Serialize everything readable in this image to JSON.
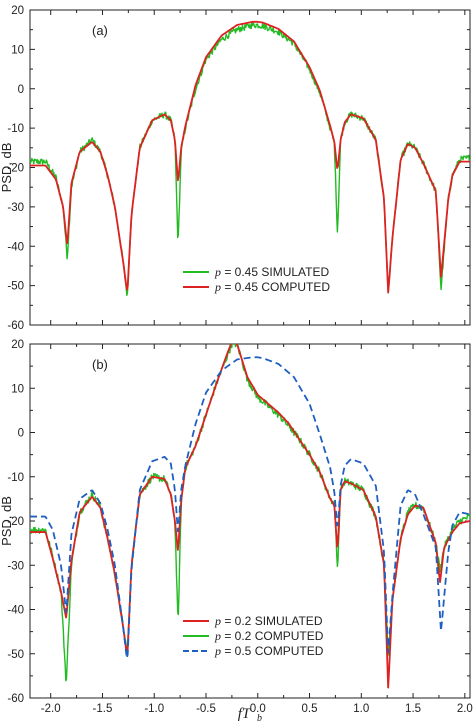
{
  "chart_data": [
    {
      "type": "line",
      "panel_tag": "(a)",
      "ylabel": "PSD, dB",
      "xlim": [
        -2.0,
        2.0
      ],
      "ylim": [
        -60,
        20
      ],
      "xticks": [
        -2.0,
        -1.5,
        -1.0,
        -0.5,
        0.0,
        0.5,
        1.0,
        1.5,
        2.0
      ],
      "yticks": [
        20,
        10,
        0,
        -10,
        -20,
        -30,
        -40,
        -50,
        -60
      ],
      "ytick_labels": [
        "20",
        "10",
        "0",
        "-10",
        "-20",
        "-30",
        "-40",
        "-50",
        "-60"
      ],
      "legend_position": "bottom-center",
      "series": [
        {
          "name": "p = 0.45 SIMULATED",
          "legend_var": "p",
          "legend_rest": " = 0.45 SIMULATED",
          "color": "#22bb22",
          "style": "solid",
          "noisy": true,
          "x": [
            -2.05,
            -1.95,
            -1.88,
            -1.84,
            -1.8,
            -1.72,
            -1.6,
            -1.52,
            -1.45,
            -1.38,
            -1.3,
            -1.26,
            -1.22,
            -1.14,
            -1.02,
            -0.9,
            -0.84,
            -0.8,
            -0.77,
            -0.74,
            -0.7,
            -0.6,
            -0.5,
            -0.35,
            -0.2,
            -0.05,
            0.0,
            0.05,
            0.2,
            0.35,
            0.5,
            0.6,
            0.7,
            0.74,
            0.77,
            0.8,
            0.84,
            0.9,
            1.02,
            1.14,
            1.22,
            1.26,
            1.3,
            1.38,
            1.45,
            1.52,
            1.6,
            1.72,
            1.77,
            1.84,
            1.88,
            1.95,
            2.05
          ],
          "y": [
            -18.5,
            -22.5,
            -30,
            -43,
            -25,
            -16,
            -13,
            -16,
            -22,
            -30,
            -44,
            -53,
            -32,
            -15,
            -8,
            -6.5,
            -8,
            -13,
            -40,
            -16,
            -10,
            0,
            7.5,
            12.5,
            15,
            16.2,
            16.2,
            16.0,
            14.5,
            11.5,
            5,
            -1,
            -10,
            -14,
            -37,
            -13,
            -8.5,
            -6.5,
            -7.5,
            -13,
            -28,
            -52,
            -38,
            -18,
            -14,
            -15,
            -19,
            -26,
            -51,
            -28,
            -22,
            -18,
            -17.5
          ]
        },
        {
          "name": "p = 0.45 COMPUTED",
          "legend_var": "p",
          "legend_rest": " = 0.45 COMPUTED",
          "color": "#dd2222",
          "style": "solid",
          "noisy": false,
          "x": [
            -2.05,
            -1.95,
            -1.88,
            -1.84,
            -1.8,
            -1.72,
            -1.6,
            -1.52,
            -1.45,
            -1.38,
            -1.3,
            -1.26,
            -1.22,
            -1.14,
            -1.02,
            -0.9,
            -0.84,
            -0.8,
            -0.77,
            -0.74,
            -0.7,
            -0.6,
            -0.5,
            -0.35,
            -0.2,
            -0.05,
            0.0,
            0.05,
            0.2,
            0.35,
            0.5,
            0.6,
            0.7,
            0.74,
            0.77,
            0.8,
            0.84,
            0.9,
            1.02,
            1.14,
            1.22,
            1.26,
            1.3,
            1.38,
            1.45,
            1.52,
            1.6,
            1.72,
            1.77,
            1.84,
            1.88,
            1.95,
            2.05
          ],
          "y": [
            -19.5,
            -23,
            -30,
            -40,
            -24,
            -16,
            -13.5,
            -16,
            -22,
            -30,
            -44,
            -52,
            -32,
            -15,
            -8,
            -6.5,
            -8,
            -13,
            -24,
            -15,
            -9.5,
            1,
            8,
            13.5,
            16.2,
            17,
            17,
            16.8,
            15.2,
            12,
            5.5,
            -0.5,
            -9.5,
            -13.5,
            -21,
            -13,
            -8.5,
            -6.5,
            -7.5,
            -13,
            -28,
            -52,
            -38,
            -18,
            -14,
            -15,
            -19,
            -26,
            -48,
            -28,
            -22,
            -18.5,
            -18.5
          ]
        }
      ]
    },
    {
      "type": "line",
      "panel_tag": "(b)",
      "ylabel": "PSD, dB",
      "xlabel_main": "fT",
      "xlabel_sub": "b",
      "xlim": [
        -2.0,
        2.0
      ],
      "ylim": [
        -60,
        20
      ],
      "xticks": [
        -2.0,
        -1.5,
        -1.0,
        -0.5,
        0.0,
        0.5,
        1.0,
        1.5,
        2.0
      ],
      "xtick_labels": [
        "-2.0",
        "-1.5",
        "-1.0",
        "-0.5",
        "0.0",
        "0.5",
        "1.0",
        "1.5",
        "2.0"
      ],
      "yticks": [
        20,
        10,
        0,
        -10,
        -20,
        -30,
        -40,
        -50,
        -60
      ],
      "ytick_labels": [
        "20",
        "10",
        "0",
        "-10",
        "-20",
        "-30",
        "-40",
        "-50",
        "-60"
      ],
      "legend_position": "bottom-center",
      "series": [
        {
          "name": "p = 0.2 COMPUTED",
          "legend_var": "p",
          "legend_rest": " = 0.2 COMPUTED",
          "legend_order": 1,
          "color": "#22bb22",
          "style": "solid",
          "noisy": true,
          "x": [
            -2.05,
            -1.98,
            -1.9,
            -1.85,
            -1.8,
            -1.72,
            -1.6,
            -1.52,
            -1.45,
            -1.38,
            -1.3,
            -1.26,
            -1.22,
            -1.14,
            -1.02,
            -0.9,
            -0.84,
            -0.8,
            -0.77,
            -0.74,
            -0.7,
            -0.6,
            -0.5,
            -0.4,
            -0.3,
            -0.25,
            -0.2,
            -0.1,
            0.0,
            0.1,
            0.2,
            0.3,
            0.4,
            0.5,
            0.6,
            0.7,
            0.74,
            0.77,
            0.8,
            0.84,
            0.9,
            1.02,
            1.14,
            1.22,
            1.26,
            1.3,
            1.38,
            1.45,
            1.52,
            1.6,
            1.72,
            1.76,
            1.8,
            1.88,
            1.95,
            2.05
          ],
          "y": [
            -22,
            -28,
            -36,
            -57,
            -30,
            -18,
            -14,
            -17,
            -24,
            -32,
            -44,
            -50,
            -30,
            -14,
            -10,
            -10.5,
            -14,
            -20,
            -44,
            -16,
            -8,
            -3,
            4,
            11,
            17,
            20,
            20,
            12,
            8,
            6,
            4,
            1.5,
            -1.5,
            -5,
            -9,
            -15,
            -16,
            -31,
            -13,
            -11,
            -11.5,
            -13,
            -19,
            -30,
            -50,
            -38,
            -24,
            -18,
            -16.5,
            -17,
            -25,
            -31,
            -26,
            -22,
            -20,
            -19
          ]
        },
        {
          "name": "p = 0.2 SIMULATED",
          "legend_var": "p",
          "legend_rest": " = 0.2 SIMULATED",
          "legend_order": 0,
          "color": "#dd2222",
          "style": "solid",
          "noisy": false,
          "x": [
            -2.05,
            -1.98,
            -1.9,
            -1.85,
            -1.8,
            -1.72,
            -1.6,
            -1.52,
            -1.45,
            -1.38,
            -1.3,
            -1.26,
            -1.22,
            -1.14,
            -1.02,
            -0.9,
            -0.84,
            -0.8,
            -0.77,
            -0.74,
            -0.7,
            -0.6,
            -0.5,
            -0.4,
            -0.3,
            -0.25,
            -0.2,
            -0.1,
            0.0,
            0.1,
            0.2,
            0.3,
            0.4,
            0.5,
            0.6,
            0.7,
            0.74,
            0.77,
            0.8,
            0.84,
            0.9,
            1.02,
            1.14,
            1.22,
            1.26,
            1.3,
            1.38,
            1.45,
            1.52,
            1.6,
            1.72,
            1.76,
            1.8,
            1.88,
            1.95,
            2.05
          ],
          "y": [
            -22.5,
            -28.5,
            -36,
            -42,
            -29,
            -18,
            -14.5,
            -17,
            -24,
            -32,
            -44,
            -51,
            -30,
            -14,
            -10,
            -10.5,
            -14,
            -20,
            -27,
            -15.5,
            -8,
            -3,
            4,
            11,
            17.5,
            20.5,
            20,
            12.5,
            8.5,
            6.5,
            4.5,
            2,
            -1.5,
            -5,
            -9,
            -15,
            -16.5,
            -27,
            -13,
            -11,
            -11.5,
            -13,
            -19,
            -30,
            -58,
            -38,
            -24,
            -18.5,
            -16.5,
            -17,
            -25,
            -34,
            -26,
            -22.5,
            -20.5,
            -20
          ]
        },
        {
          "name": "p = 0.5 COMPUTED",
          "legend_var": "p",
          "legend_rest": " = 0.5 COMPUTED",
          "legend_order": 2,
          "color": "#1f5fbf",
          "style": "dashed",
          "noisy": false,
          "x": [
            -2.05,
            -1.98,
            -1.9,
            -1.85,
            -1.8,
            -1.72,
            -1.6,
            -1.52,
            -1.45,
            -1.38,
            -1.3,
            -1.26,
            -1.22,
            -1.14,
            -1.02,
            -0.9,
            -0.84,
            -0.8,
            -0.77,
            -0.74,
            -0.7,
            -0.6,
            -0.5,
            -0.35,
            -0.2,
            -0.05,
            0.0,
            0.05,
            0.2,
            0.35,
            0.5,
            0.6,
            0.7,
            0.74,
            0.77,
            0.8,
            0.84,
            0.9,
            1.02,
            1.14,
            1.22,
            1.26,
            1.3,
            1.38,
            1.45,
            1.52,
            1.6,
            1.72,
            1.77,
            1.84,
            1.88,
            1.95,
            2.05
          ],
          "y": [
            -19,
            -22,
            -30,
            -41,
            -23,
            -15,
            -13,
            -16,
            -22,
            -30,
            -44,
            -52,
            -31,
            -13,
            -6.5,
            -5.5,
            -7,
            -13,
            -23,
            -13,
            -7.5,
            2,
            9,
            14,
            16.5,
            17,
            17,
            16.8,
            15.5,
            12.5,
            6.5,
            -0.5,
            -8,
            -13.5,
            -22,
            -12,
            -7.5,
            -6,
            -7,
            -12,
            -27,
            -50,
            -37,
            -16.5,
            -13,
            -14,
            -18.5,
            -26,
            -45,
            -27,
            -21,
            -18,
            -18.5
          ]
        }
      ]
    }
  ]
}
